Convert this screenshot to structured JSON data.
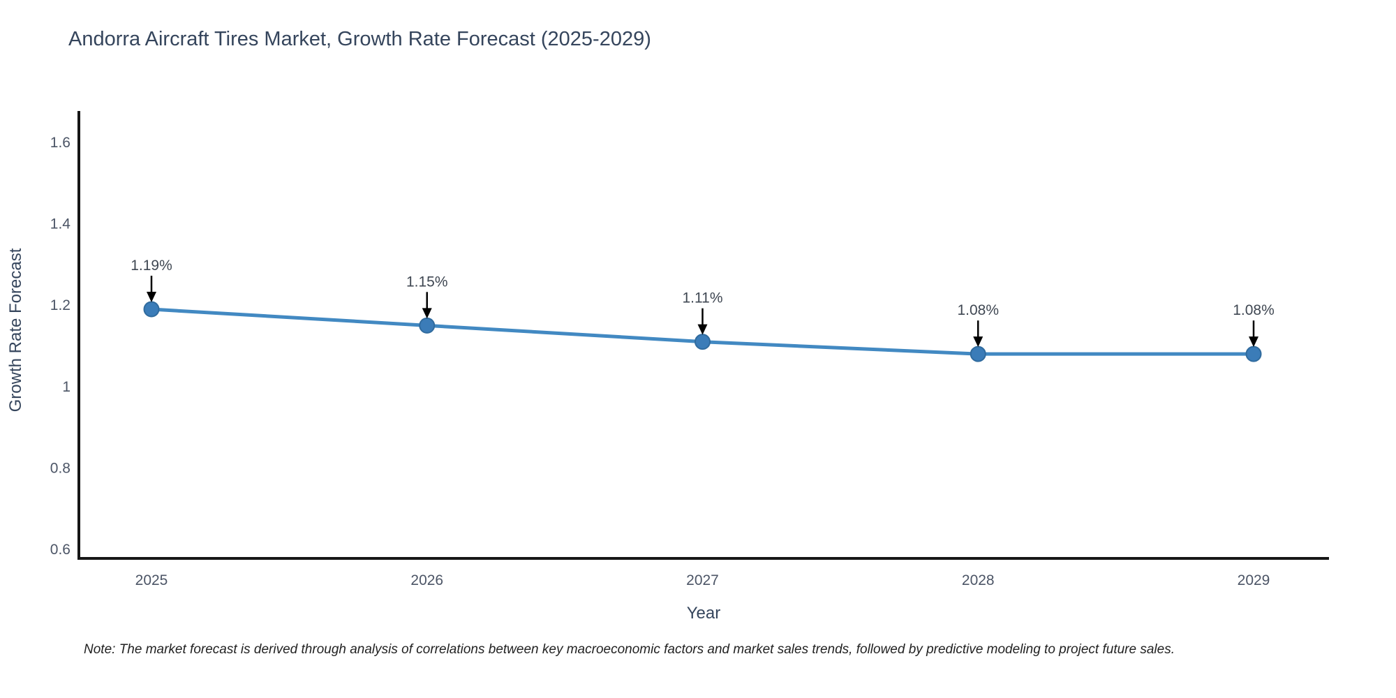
{
  "page": {
    "background_color": "#ffffff"
  },
  "chart_data": {
    "type": "line",
    "title": "Andorra Aircraft Tires Market, Growth Rate Forecast (2025-2029)",
    "xlabel": "Year",
    "ylabel": "Growth Rate Forecast",
    "x": [
      2025,
      2026,
      2027,
      2028,
      2029
    ],
    "series": [
      {
        "name": "Growth Rate Forecast",
        "values": [
          1.19,
          1.15,
          1.11,
          1.08,
          1.08
        ]
      }
    ],
    "point_annotations": [
      "1.19%",
      "1.15%",
      "1.11%",
      "1.08%",
      "1.08%"
    ],
    "xtick_labels": [
      "2025",
      "2026",
      "2027",
      "2028",
      "2029"
    ],
    "yticks": [
      0.6,
      0.8,
      1,
      1.2,
      1.4,
      1.6
    ],
    "ytick_labels": [
      "0.6",
      "0.8",
      "1",
      "1.2",
      "1.4",
      "1.6"
    ],
    "ylim": [
      0.575,
      1.67
    ],
    "grid": false,
    "legend_position": "none",
    "colors": {
      "line": "#4289c2",
      "marker_fill": "#3b7cb8",
      "marker_edge": "#306b9e",
      "axis_line": "#161616",
      "annotation_arrow": "#000000",
      "annotation_text": "#3f4752",
      "tick_text": "#4c5566",
      "title_text": "#35455c"
    },
    "note": "Note: The market forecast is derived through analysis of correlations between key macroeconomic factors and market sales trends, followed by predictive modeling to project future sales."
  }
}
